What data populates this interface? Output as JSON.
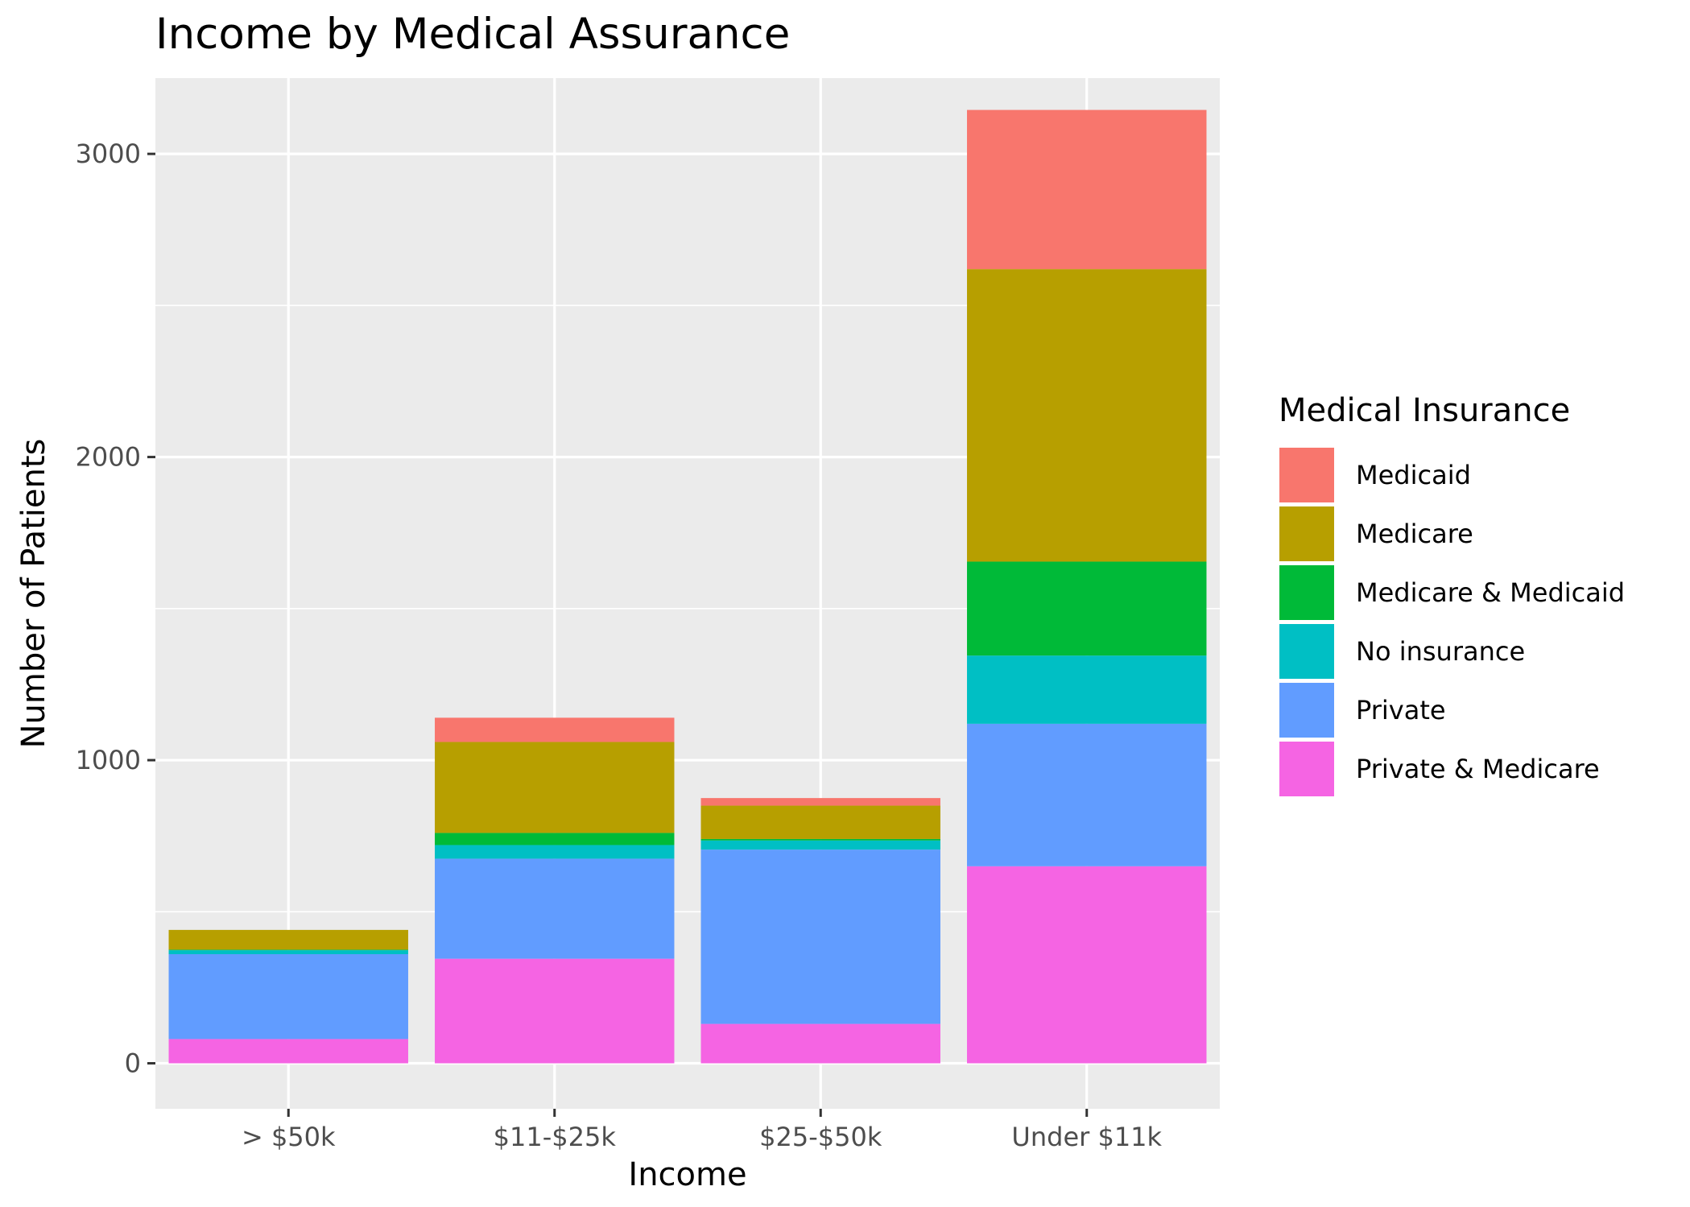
{
  "chart_data": {
    "type": "bar",
    "stacked": true,
    "title": "Income by Medical Assurance",
    "xlabel": "Income",
    "ylabel": "Number of Patients",
    "ylim": [
      -150,
      3250
    ],
    "yticks": [
      0,
      1000,
      2000,
      3000
    ],
    "grid": true,
    "legend": {
      "title": "Medical Insurance",
      "position": "right"
    },
    "categories": [
      "> $50k",
      "$11-$25k",
      "$25-$50k",
      "Under $11k"
    ],
    "series": [
      {
        "name": "Medicaid",
        "color": "#F8766D",
        "values": [
          0,
          80,
          25,
          525
        ]
      },
      {
        "name": "Medicare",
        "color": "#B79F00",
        "values": [
          65,
          300,
          110,
          965
        ]
      },
      {
        "name": "Medicare & Medicaid",
        "color": "#00BA38",
        "values": [
          2,
          40,
          5,
          310
        ]
      },
      {
        "name": "No insurance",
        "color": "#00BFC4",
        "values": [
          13,
          45,
          30,
          225
        ]
      },
      {
        "name": "Private",
        "color": "#619CFF",
        "values": [
          280,
          330,
          575,
          470
        ]
      },
      {
        "name": "Private & Medicare",
        "color": "#F564E3",
        "values": [
          80,
          345,
          130,
          650
        ]
      }
    ]
  }
}
